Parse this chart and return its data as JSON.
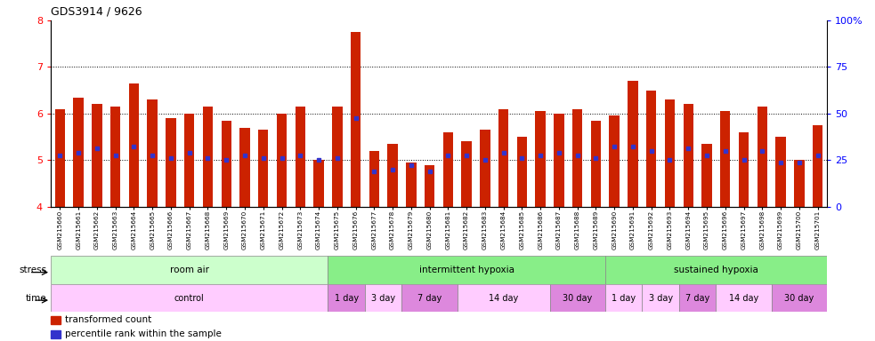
{
  "title": "GDS3914 / 9626",
  "samples": [
    "GSM215660",
    "GSM215661",
    "GSM215662",
    "GSM215663",
    "GSM215664",
    "GSM215665",
    "GSM215666",
    "GSM215667",
    "GSM215668",
    "GSM215669",
    "GSM215670",
    "GSM215671",
    "GSM215672",
    "GSM215673",
    "GSM215674",
    "GSM215675",
    "GSM215676",
    "GSM215677",
    "GSM215678",
    "GSM215679",
    "GSM215680",
    "GSM215681",
    "GSM215682",
    "GSM215683",
    "GSM215684",
    "GSM215685",
    "GSM215686",
    "GSM215687",
    "GSM215688",
    "GSM215689",
    "GSM215690",
    "GSM215691",
    "GSM215692",
    "GSM215693",
    "GSM215694",
    "GSM215695",
    "GSM215696",
    "GSM215697",
    "GSM215698",
    "GSM215699",
    "GSM215700",
    "GSM215701"
  ],
  "bar_values": [
    6.1,
    6.35,
    6.2,
    6.15,
    6.65,
    6.3,
    5.9,
    6.0,
    6.15,
    5.85,
    5.7,
    5.65,
    6.0,
    6.15,
    5.0,
    6.15,
    7.75,
    5.2,
    5.35,
    4.95,
    4.9,
    5.6,
    5.4,
    5.65,
    6.1,
    5.5,
    6.05,
    6.0,
    6.1,
    5.85,
    5.95,
    6.7,
    6.5,
    6.3,
    6.2,
    5.35,
    6.05,
    5.6,
    6.15,
    5.5,
    5.0,
    5.75
  ],
  "blue_values": [
    5.1,
    5.15,
    5.25,
    5.1,
    5.3,
    5.1,
    5.05,
    5.15,
    5.05,
    5.0,
    5.1,
    5.05,
    5.05,
    5.1,
    5.0,
    5.05,
    5.9,
    4.75,
    4.8,
    4.9,
    4.75,
    5.1,
    5.1,
    5.0,
    5.15,
    5.05,
    5.1,
    5.15,
    5.1,
    5.05,
    5.3,
    5.3,
    5.2,
    5.0,
    5.25,
    5.1,
    5.2,
    5.0,
    5.2,
    4.95,
    4.95,
    5.1
  ],
  "ylim_left": [
    4,
    8
  ],
  "ylim_right": [
    0,
    100
  ],
  "yticks_left": [
    4,
    5,
    6,
    7,
    8
  ],
  "yticks_right": [
    0,
    25,
    50,
    75,
    100
  ],
  "bar_color": "#cc2200",
  "blue_color": "#3333cc",
  "bar_bottom": 4,
  "stress_groups": [
    {
      "label": "room air",
      "start": 0,
      "end": 15,
      "color": "#ccffcc"
    },
    {
      "label": "intermittent hypoxia",
      "start": 15,
      "end": 30,
      "color": "#88ee88"
    },
    {
      "label": "sustained hypoxia",
      "start": 30,
      "end": 42,
      "color": "#88ee88"
    }
  ],
  "stress_bg_colors": [
    "#ccffcc",
    "#88ee88",
    "#88ee88"
  ],
  "time_groups": [
    {
      "label": "control",
      "start": 0,
      "end": 15
    },
    {
      "label": "1 day",
      "start": 15,
      "end": 17
    },
    {
      "label": "3 day",
      "start": 17,
      "end": 19
    },
    {
      "label": "7 day",
      "start": 19,
      "end": 22
    },
    {
      "label": "14 day",
      "start": 22,
      "end": 27
    },
    {
      "label": "30 day",
      "start": 27,
      "end": 30
    },
    {
      "label": "1 day",
      "start": 30,
      "end": 32
    },
    {
      "label": "3 day",
      "start": 32,
      "end": 34
    },
    {
      "label": "7 day",
      "start": 34,
      "end": 36
    },
    {
      "label": "14 day",
      "start": 36,
      "end": 39
    },
    {
      "label": "30 day",
      "start": 39,
      "end": 42
    }
  ],
  "time_bg_colors": [
    "#ffccff",
    "#dd88dd",
    "#ffccff",
    "#dd88dd",
    "#ffccff",
    "#dd88dd",
    "#ffccff",
    "#ffccff",
    "#dd88dd",
    "#ffccff",
    "#dd88dd"
  ]
}
